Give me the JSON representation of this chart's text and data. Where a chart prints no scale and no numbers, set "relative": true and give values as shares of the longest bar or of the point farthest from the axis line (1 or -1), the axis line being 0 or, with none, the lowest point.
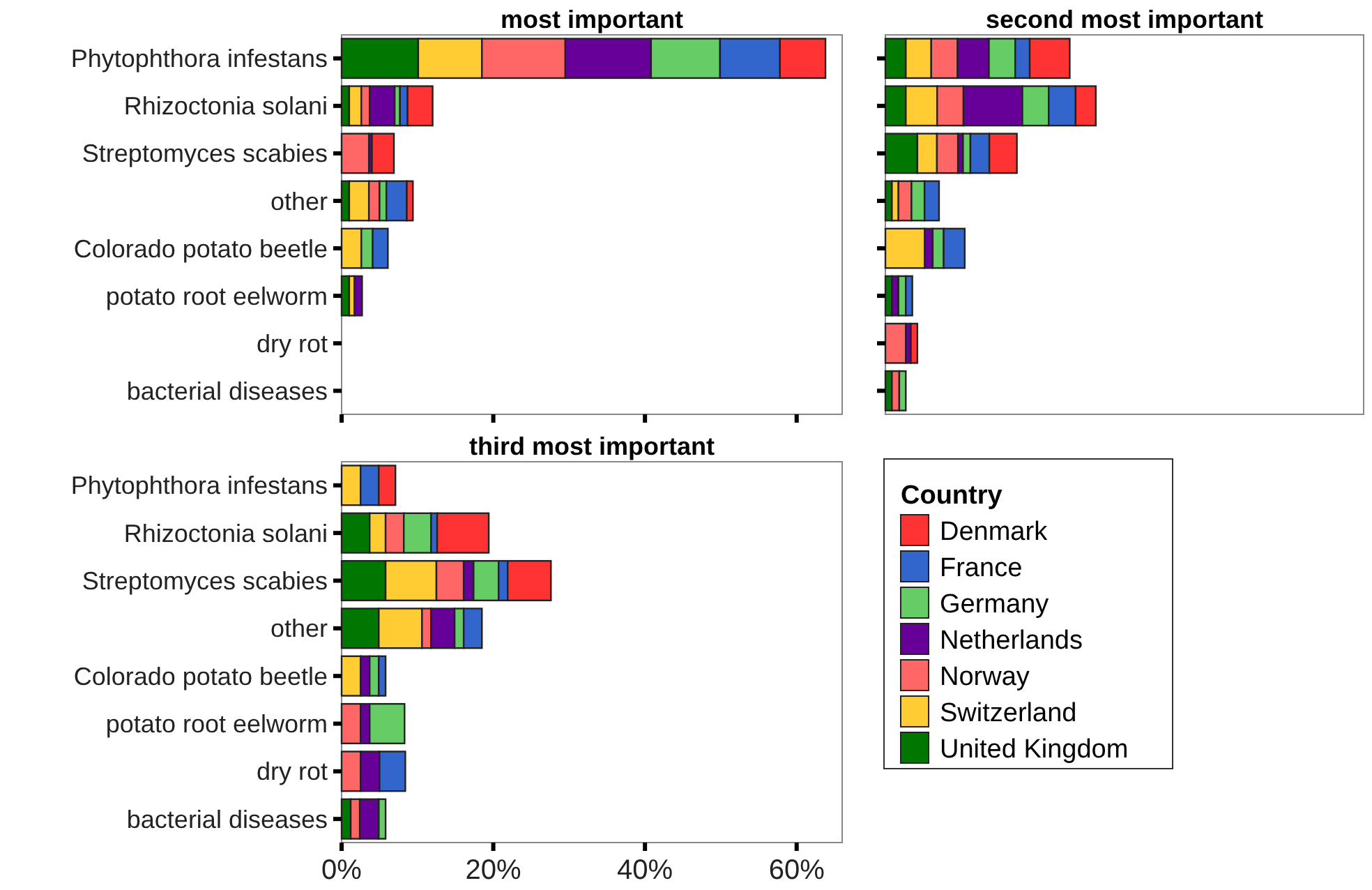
{
  "chart_data": [
    {
      "type": "bar",
      "orientation": "horizontal",
      "stacked": true,
      "title": "most important",
      "tick_labels": "y",
      "categories": [
        "Phytophthora infestans",
        "Rhizoctonia solani",
        "Streptomyces scabies",
        "other",
        "Colorado potato beetle",
        "potato root eelworm",
        "dry rot",
        "bacterial diseases"
      ],
      "xlim": [
        0,
        66
      ],
      "xticks": [
        {
          "value": 0,
          "label": null
        },
        {
          "value": 20,
          "label": null
        },
        {
          "value": 40,
          "label": null
        },
        {
          "value": 60,
          "label": null
        }
      ],
      "series": [
        {
          "color": "#007700",
          "values": [
            10.1,
            1.0,
            0,
            1.0,
            0,
            1.0,
            0,
            0
          ]
        },
        {
          "color": "#ffcc33",
          "values": [
            8.4,
            1.6,
            0,
            2.6,
            2.6,
            0.7,
            0,
            0
          ]
        },
        {
          "color": "#ff6666",
          "values": [
            11.0,
            1.1,
            3.6,
            1.4,
            0,
            0,
            0,
            0
          ]
        },
        {
          "color": "#660099",
          "values": [
            11.3,
            3.3,
            0.4,
            0,
            0,
            1.0,
            0,
            0
          ]
        },
        {
          "color": "#66cc66",
          "values": [
            9.1,
            0.7,
            0,
            0.9,
            1.5,
            0,
            0,
            0
          ]
        },
        {
          "color": "#3366cc",
          "values": [
            7.9,
            1.0,
            0,
            2.7,
            2.0,
            0,
            0,
            0
          ]
        },
        {
          "color": "#ff3333",
          "values": [
            6.0,
            3.3,
            2.9,
            0.8,
            0,
            0,
            0,
            0
          ]
        }
      ]
    },
    {
      "type": "bar",
      "orientation": "horizontal",
      "stacked": true,
      "relative": true,
      "title": "second most important",
      "tick_labels": false,
      "categories": [
        null,
        null,
        null,
        null,
        null,
        null,
        null,
        null
      ],
      "series": [
        {
          "color": "#007700",
          "values": [
            0.097,
            0.097,
            0.152,
            0.031,
            0,
            0.031,
            0,
            0.031
          ]
        },
        {
          "color": "#ffcc33",
          "values": [
            0.121,
            0.149,
            0.093,
            0.031,
            0.187,
            0,
            0,
            0
          ]
        },
        {
          "color": "#ff6666",
          "values": [
            0.125,
            0.125,
            0.1,
            0.062,
            0,
            0,
            0.097,
            0.035
          ]
        },
        {
          "color": "#660099",
          "values": [
            0.149,
            0.28,
            0.024,
            0,
            0.038,
            0.031,
            0.024,
            0
          ]
        },
        {
          "color": "#66cc66",
          "values": [
            0.125,
            0.125,
            0.035,
            0.062,
            0.052,
            0.035,
            0,
            0.031
          ]
        },
        {
          "color": "#3366cc",
          "values": [
            0.069,
            0.128,
            0.09,
            0.069,
            0.1,
            0.031,
            0,
            0
          ]
        },
        {
          "color": "#ff3333",
          "values": [
            0.19,
            0.096,
            0.131,
            0,
            0,
            0,
            0.031,
            0
          ]
        }
      ]
    },
    {
      "type": "bar",
      "orientation": "horizontal",
      "stacked": true,
      "title": "third most important",
      "legend": "right",
      "legend_title": "Country",
      "categories": [
        "Phytophthora infestans",
        "Rhizoctonia solani",
        "Streptomyces scabies",
        "other",
        "Colorado potato beetle",
        "potato root eelworm",
        "dry rot",
        "bacterial diseases"
      ],
      "xlim": [
        0,
        66
      ],
      "xticks": [
        {
          "value": 0,
          "label": "0%"
        },
        {
          "value": 20,
          "label": "20%"
        },
        {
          "value": 40,
          "label": "40%"
        },
        {
          "value": 60,
          "label": "60%"
        }
      ],
      "series": [
        {
          "name": "United Kingdom",
          "color": "#007700",
          "values": [
            0,
            3.7,
            5.8,
            4.9,
            0,
            0,
            0,
            1.2
          ]
        },
        {
          "name": "Switzerland",
          "color": "#ffcc33",
          "values": [
            2.5,
            2.1,
            6.7,
            5.7,
            2.5,
            0,
            0,
            0
          ]
        },
        {
          "name": "Norway",
          "color": "#ff6666",
          "values": [
            0,
            2.4,
            3.6,
            1.2,
            0,
            2.5,
            2.5,
            1.2
          ]
        },
        {
          "name": "Netherlands",
          "color": "#660099",
          "values": [
            0,
            0,
            1.3,
            3.1,
            1.2,
            1.2,
            2.5,
            2.5
          ]
        },
        {
          "name": "Germany",
          "color": "#66cc66",
          "values": [
            0,
            3.6,
            3.3,
            1.2,
            1.2,
            4.6,
            0,
            0.9
          ]
        },
        {
          "name": "France",
          "color": "#3366cc",
          "values": [
            2.4,
            0.8,
            1.2,
            2.4,
            0.9,
            0,
            3.4,
            0
          ]
        },
        {
          "name": "Denmark",
          "color": "#ff3333",
          "values": [
            2.2,
            6.8,
            5.7,
            0,
            0,
            0,
            0,
            0
          ]
        }
      ]
    }
  ]
}
